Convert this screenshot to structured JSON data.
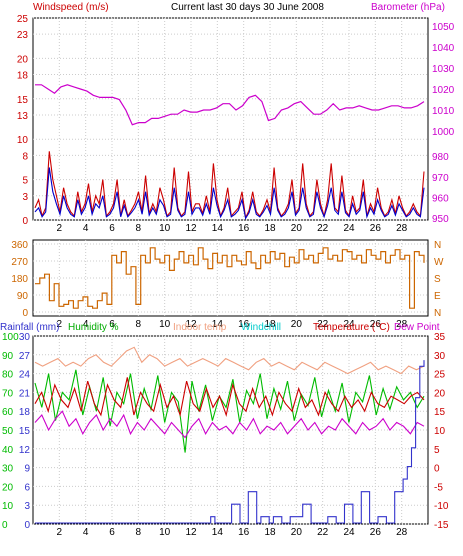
{
  "title": "Current last 30 days 30 June 2008",
  "colors": {
    "wind": "#cc0000",
    "gust": "#0000cc",
    "baro": "#cc00cc",
    "dir": "#cc6600",
    "rain": "#3333cc",
    "humidity": "#00bb00",
    "indoor": "#f0a080",
    "windchill": "#00cccc",
    "temp": "#cc0000",
    "dew": "#cc00cc",
    "grid": "#cccccc"
  },
  "chart_data": [
    {
      "type": "line",
      "panel": "wind",
      "labels": {
        "left": "Windspeed (m/s)",
        "right": "Barometer (hPa)"
      },
      "x": {
        "ticks": [
          "2",
          "4",
          "6",
          "8",
          "10",
          "12",
          "14",
          "16",
          "18",
          "20",
          "22",
          "24",
          "26",
          "28"
        ],
        "range": [
          0,
          30
        ]
      },
      "y_left": {
        "ticks": [
          "0",
          "3",
          "5",
          "8",
          "10",
          "13",
          "15",
          "18",
          "20",
          "23",
          "25"
        ],
        "range": [
          0,
          25
        ]
      },
      "y_right_baro": {
        "ticks": [
          "1000",
          "1010",
          "1020",
          "1030",
          "1040",
          "1050"
        ],
        "range": [
          995,
          1051
        ]
      },
      "y_right_small": {
        "ticks": [
          "950",
          "960",
          "970",
          "980"
        ],
        "range": [
          949,
          984
        ]
      },
      "series": [
        {
          "key": "baro",
          "values_hpa": [
            1022,
            1022,
            1020,
            1018,
            1021,
            1022,
            1021,
            1020,
            1019,
            1017,
            1016,
            1016,
            1016,
            1015,
            1010,
            1003,
            1004,
            1004,
            1006,
            1006,
            1007,
            1008,
            1008,
            1010,
            1009,
            1009,
            1010,
            1010,
            1011,
            1013,
            1013,
            1010,
            1012,
            1016,
            1017,
            1014,
            1005,
            1006,
            1010,
            1011,
            1013,
            1014,
            1011,
            1008,
            1008,
            1010,
            1013,
            1010,
            1011,
            1011,
            1012,
            1011,
            1010,
            1010,
            1011,
            1012,
            1012,
            1011,
            1011,
            1012,
            1014
          ]
        },
        {
          "key": "wind",
          "values_ms": [
            1.5,
            2.5,
            0.5,
            1.5,
            8.5,
            5,
            3,
            1,
            4,
            2,
            1,
            0.5,
            3.5,
            1,
            2,
            4.5,
            1,
            3,
            2,
            5,
            0.5,
            1,
            2,
            5,
            0.5,
            2.5,
            0.5,
            1.2,
            2,
            3.5,
            1,
            5.5,
            0.8,
            2,
            1,
            4,
            2.5,
            0.5,
            1,
            6.5,
            1.5,
            0.5,
            1,
            6,
            1,
            2,
            2,
            0.8,
            3,
            1,
            7,
            2.5,
            0.5,
            1.5,
            4,
            0.5,
            1,
            1.5,
            3.5,
            0.3,
            1.2,
            3.5,
            1,
            0.5,
            1.3,
            2.5,
            1,
            6.5,
            1.5,
            0.5,
            1,
            2,
            5,
            0.8,
            1.5,
            7,
            2,
            0.5,
            1,
            5,
            2,
            0.5,
            2.5,
            7,
            1.5,
            1,
            5.5,
            1.2,
            0.5,
            3,
            1,
            1.5,
            5,
            0.5,
            2,
            1,
            4,
            1.5,
            0.5,
            1,
            2.5,
            0.8,
            3,
            1.5,
            0.5,
            1,
            2,
            1,
            0.5,
            6
          ]
        },
        {
          "key": "gust",
          "values_ms": [
            1,
            1.5,
            0.4,
            1,
            6.5,
            3.5,
            2,
            0.7,
            3,
            1.5,
            0.7,
            0.4,
            2.5,
            0.7,
            1.5,
            3,
            0.7,
            2,
            1.5,
            3,
            0.4,
            0.7,
            1.5,
            3.5,
            0.4,
            1.8,
            0.4,
            0.9,
            1.5,
            2.5,
            0.7,
            3.5,
            0.6,
            1.5,
            0.7,
            2.5,
            1.8,
            0.4,
            0.7,
            4,
            1.2,
            0.4,
            0.7,
            3.5,
            0.7,
            1.5,
            1.5,
            0.6,
            2,
            0.7,
            4,
            1.8,
            0.4,
            1.2,
            2.5,
            0.4,
            0.7,
            1.2,
            2.5,
            0.2,
            0.9,
            2.5,
            0.7,
            0.4,
            1,
            1.8,
            0.7,
            4,
            1.2,
            0.4,
            0.7,
            1.5,
            3.5,
            0.6,
            1.2,
            4,
            1.5,
            0.4,
            0.7,
            3.5,
            1.5,
            0.4,
            1.8,
            4,
            1.2,
            0.7,
            3.5,
            0.9,
            0.4,
            2,
            0.7,
            1.2,
            3.5,
            0.4,
            1.5,
            0.7,
            2.5,
            1.2,
            0.4,
            0.7,
            1.8,
            0.6,
            2,
            1.2,
            0.4,
            0.7,
            1.5,
            0.7,
            0.4,
            4
          ]
        }
      ]
    },
    {
      "type": "line",
      "panel": "direction",
      "labels": {
        "right": [
          "N",
          "W",
          "S",
          "E",
          "N"
        ]
      },
      "y_left": {
        "ticks": [
          "0",
          "90",
          "180",
          "270",
          "360"
        ],
        "range": [
          0,
          360
        ]
      },
      "x": {
        "ticks": [
          "2",
          "4",
          "6",
          "8",
          "10",
          "12",
          "14",
          "16",
          "18",
          "20",
          "22",
          "24",
          "26",
          "28"
        ],
        "range": [
          0,
          30
        ]
      },
      "series": [
        {
          "key": "dir",
          "values_deg": [
            150,
            180,
            200,
            60,
            150,
            30,
            40,
            60,
            20,
            60,
            80,
            30,
            20,
            60,
            100,
            40,
            300,
            260,
            320,
            200,
            240,
            40,
            300,
            260,
            340,
            280,
            260,
            300,
            220,
            280,
            320,
            260,
            300,
            250,
            340,
            280,
            230,
            310,
            260,
            300,
            240,
            300,
            270,
            250,
            320,
            260,
            230,
            300,
            260,
            320,
            280,
            310,
            240,
            290,
            260,
            330,
            280,
            300,
            260,
            310,
            340,
            280,
            300,
            270,
            330,
            320,
            280,
            300,
            260,
            330,
            300,
            280,
            320,
            260,
            300,
            330,
            280,
            300,
            20,
            320,
            300,
            260
          ]
        }
      ]
    },
    {
      "type": "line",
      "panel": "temperature",
      "labels": {
        "rain": "Rainfall (mm)",
        "humidity": "Humidity %",
        "indoor": "Indoor temp",
        "windchill": "Windchill",
        "temp": "Temperature (°C)",
        "dew": "Dew Point"
      },
      "x": {
        "ticks": [
          "2",
          "4",
          "6",
          "8",
          "10",
          "12",
          "14",
          "16",
          "18",
          "20",
          "22",
          "24",
          "26",
          "28"
        ],
        "range": [
          0,
          30
        ]
      },
      "y_rain": {
        "ticks": [
          "0",
          "3",
          "6",
          "9",
          "12",
          "15",
          "18",
          "21",
          "24",
          "27",
          "30"
        ],
        "range": [
          0,
          30
        ]
      },
      "y_humidity": {
        "ticks": [
          "0",
          "10",
          "20",
          "30",
          "40",
          "50",
          "60",
          "70",
          "80",
          "90",
          "100"
        ],
        "range": [
          0,
          100
        ]
      },
      "y_temp": {
        "ticks": [
          "-15",
          "-10",
          "-5",
          "0",
          "5",
          "10",
          "15",
          "20",
          "25",
          "30",
          "35"
        ],
        "range": [
          -15,
          35
        ]
      },
      "series": [
        {
          "key": "indoor",
          "values_c": [
            28,
            27,
            28,
            29,
            27,
            28,
            27,
            29,
            30,
            28,
            27,
            29,
            31,
            32,
            28,
            30,
            29,
            27,
            28,
            29,
            27,
            28,
            29,
            28,
            27,
            29,
            28,
            27,
            26,
            28,
            29,
            27,
            28,
            27,
            26,
            28,
            27,
            26,
            28,
            27,
            26,
            25,
            26,
            27,
            28,
            26,
            27,
            26,
            25,
            27,
            26,
            27
          ]
        },
        {
          "key": "temp",
          "values_c": [
            17,
            20,
            15,
            22,
            18,
            16,
            21,
            15,
            23,
            17,
            14,
            22,
            18,
            16,
            24,
            14,
            20,
            17,
            15,
            22,
            16,
            19,
            14,
            23,
            17,
            15,
            21,
            16,
            19,
            14,
            22,
            17,
            15,
            21,
            16,
            19,
            14,
            20,
            17,
            15,
            21,
            16,
            18,
            14,
            20,
            17,
            15,
            19,
            16,
            18,
            15,
            20,
            17,
            16,
            19,
            18,
            17,
            19,
            20,
            18
          ]
        },
        {
          "key": "dew",
          "values_c": [
            12,
            14,
            10,
            13,
            15,
            11,
            13,
            9,
            12,
            14,
            10,
            13,
            11,
            14,
            9,
            12,
            10,
            13,
            11,
            9,
            12,
            10,
            8,
            11,
            13,
            9,
            12,
            10,
            11,
            9,
            12,
            10,
            13,
            9,
            11,
            10,
            12,
            9,
            11,
            13,
            10,
            12,
            9,
            11,
            10,
            13,
            11,
            9,
            12,
            10,
            11,
            13,
            10,
            12,
            11,
            9,
            12,
            11
          ]
        },
        {
          "key": "humidity",
          "values_pct": [
            75,
            62,
            80,
            55,
            70,
            66,
            82,
            58,
            73,
            60,
            78,
            52,
            70,
            64,
            80,
            56,
            72,
            61,
            79,
            54,
            70,
            65,
            38,
            76,
            60,
            74,
            55,
            68,
            62,
            77,
            54,
            71,
            64,
            80,
            56,
            72,
            61,
            76,
            55,
            69,
            63,
            78,
            57,
            71,
            60,
            75,
            54,
            70,
            65,
            79,
            58,
            72,
            61,
            73,
            66,
            70,
            62,
            68
          ]
        },
        {
          "key": "rain",
          "values_mm": [
            0,
            0,
            0,
            0,
            0,
            0,
            0,
            0,
            0,
            0,
            0,
            0,
            0,
            0,
            0,
            0,
            0,
            0,
            0,
            0,
            0,
            0,
            0,
            0,
            0,
            0,
            0,
            0,
            0,
            0,
            0,
            0,
            0,
            0,
            0,
            0,
            0,
            0,
            0,
            0,
            0,
            0,
            1,
            0,
            0,
            0,
            0,
            3,
            3,
            0,
            0,
            5,
            5,
            0,
            1,
            1,
            0,
            1,
            1,
            0,
            0,
            1,
            1,
            1,
            3,
            3,
            0,
            0,
            0,
            0,
            1,
            1,
            0,
            0,
            3,
            3,
            0,
            0,
            5,
            5,
            0,
            0,
            1,
            1,
            0,
            0,
            5,
            5,
            7,
            9,
            12,
            20,
            25,
            26
          ]
        }
      ]
    }
  ]
}
